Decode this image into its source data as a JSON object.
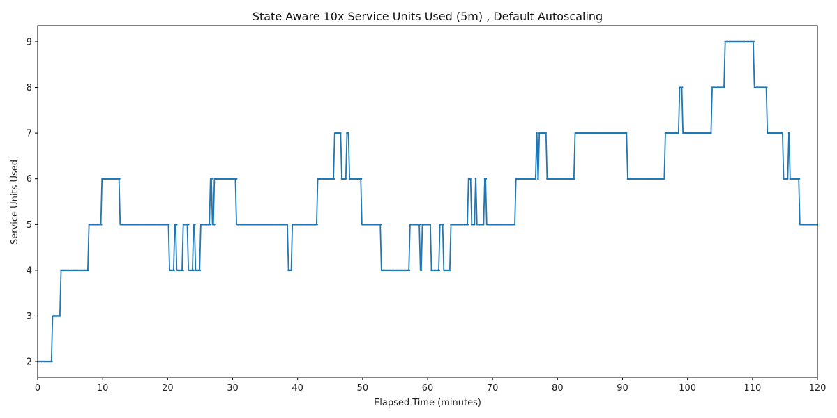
{
  "chart_data": {
    "type": "line",
    "title": "State Aware 10x Service Units Used (5m) , Default Autoscaling",
    "xlabel": "Elapsed Time (minutes)",
    "ylabel": "Service Units Used",
    "xlim": [
      0,
      120
    ],
    "ylim": [
      1.65,
      9.35
    ],
    "x_ticks": [
      0,
      10,
      20,
      30,
      40,
      50,
      60,
      70,
      80,
      90,
      100,
      110,
      120
    ],
    "y_ticks": [
      2,
      3,
      4,
      5,
      6,
      7,
      8,
      9
    ],
    "grid": false,
    "line_color": "#1f77b4",
    "series": [
      {
        "steps": [
          [
            0,
            2
          ],
          [
            2.3,
            3
          ],
          [
            3.6,
            4
          ],
          [
            7.9,
            5
          ],
          [
            9.9,
            6
          ],
          [
            12.7,
            5
          ],
          [
            20.3,
            4
          ],
          [
            21.1,
            5
          ],
          [
            21.4,
            4
          ],
          [
            22.4,
            5
          ],
          [
            23.2,
            4
          ],
          [
            24.0,
            5
          ],
          [
            24.3,
            4
          ],
          [
            25.1,
            5
          ],
          [
            26.6,
            6
          ],
          [
            26.9,
            5
          ],
          [
            27.2,
            6
          ],
          [
            30.6,
            5
          ],
          [
            38.6,
            4
          ],
          [
            39.2,
            5
          ],
          [
            43.1,
            6
          ],
          [
            45.7,
            7
          ],
          [
            46.8,
            6
          ],
          [
            47.6,
            7
          ],
          [
            48.0,
            6
          ],
          [
            49.9,
            5
          ],
          [
            52.9,
            4
          ],
          [
            57.3,
            5
          ],
          [
            58.9,
            4
          ],
          [
            59.2,
            5
          ],
          [
            60.6,
            4
          ],
          [
            61.9,
            5
          ],
          [
            62.5,
            4
          ],
          [
            63.6,
            5
          ],
          [
            66.3,
            6
          ],
          [
            66.8,
            5
          ],
          [
            67.4,
            6
          ],
          [
            67.6,
            5
          ],
          [
            68.8,
            6
          ],
          [
            69.1,
            5
          ],
          [
            73.6,
            6
          ],
          [
            76.8,
            7
          ],
          [
            77.0,
            6
          ],
          [
            77.2,
            7
          ],
          [
            78.4,
            6
          ],
          [
            82.7,
            7
          ],
          [
            90.8,
            6
          ],
          [
            96.6,
            7
          ],
          [
            98.8,
            8
          ],
          [
            99.3,
            7
          ],
          [
            103.8,
            8
          ],
          [
            105.8,
            9
          ],
          [
            110.3,
            8
          ],
          [
            112.3,
            7
          ],
          [
            114.8,
            6
          ],
          [
            115.6,
            7
          ],
          [
            115.8,
            6
          ],
          [
            117.3,
            5
          ],
          [
            120,
            5
          ]
        ]
      }
    ]
  }
}
